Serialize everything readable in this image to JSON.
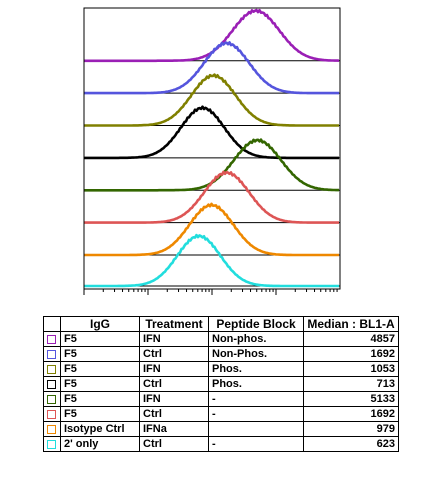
{
  "chart_data": {
    "type": "line",
    "title": "",
    "xlabel": "",
    "ylabel": "",
    "x_scale": "log",
    "x_range": [
      10,
      100000
    ],
    "series": [
      {
        "color": "#9a1fb5",
        "mode": 4857
      },
      {
        "color": "#5555dd",
        "mode": 1692
      },
      {
        "color": "#808000",
        "mode": 1053
      },
      {
        "color": "#000000",
        "mode": 713
      },
      {
        "color": "#336600",
        "mode": 5133
      },
      {
        "color": "#dd5555",
        "mode": 1692
      },
      {
        "color": "#ee8800",
        "mode": 979
      },
      {
        "color": "#22dddd",
        "mode": 623
      }
    ]
  },
  "table": {
    "headers": [
      "IgG",
      "Treatment",
      "Peptide Block",
      "Median : BL1-A"
    ],
    "rows": [
      {
        "color": "#9a1fb5",
        "igg": "F5",
        "treatment": "IFN",
        "peptide": "Non-phos.",
        "median": "4857"
      },
      {
        "color": "#5555dd",
        "igg": "F5",
        "treatment": "Ctrl",
        "peptide": "Non-Phos.",
        "median": "1692"
      },
      {
        "color": "#808000",
        "igg": "F5",
        "treatment": "IFN",
        "peptide": "Phos.",
        "median": "1053"
      },
      {
        "color": "#000000",
        "igg": "F5",
        "treatment": "Ctrl",
        "peptide": "Phos.",
        "median": "713"
      },
      {
        "color": "#336600",
        "igg": "F5",
        "treatment": "IFN",
        "peptide": "-",
        "median": "5133"
      },
      {
        "color": "#dd5555",
        "igg": "F5",
        "treatment": "Ctrl",
        "peptide": "-",
        "median": "1692"
      },
      {
        "color": "#ee8800",
        "igg": "Isotype Ctrl",
        "treatment": "IFNa",
        "peptide": "",
        "median": "979"
      },
      {
        "color": "#22dddd",
        "igg": "2' only",
        "treatment": "Ctrl",
        "peptide": "-",
        "median": "623"
      }
    ]
  }
}
